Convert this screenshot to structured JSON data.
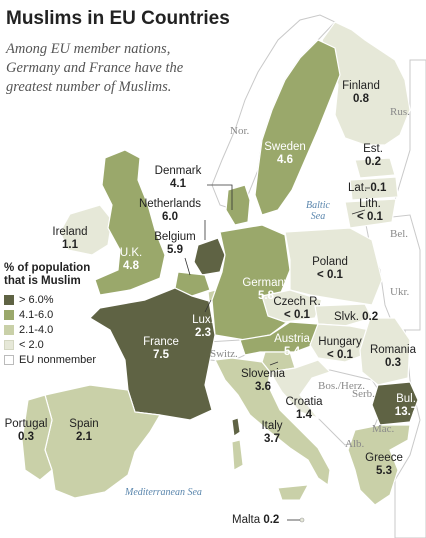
{
  "title": "Muslims in EU Countries",
  "subtitle": "Among EU member nations, Germany and France have the greatest number of Muslims.",
  "legend": {
    "title": "% of population that is Muslim",
    "items": [
      {
        "label": "> 6.0%",
        "color": "#5f6344"
      },
      {
        "label": "4.1-6.0",
        "color": "#9aa86b"
      },
      {
        "label": "2.1-4.0",
        "color": "#c9d0a8"
      },
      {
        "label": "< 2.0",
        "color": "#e6e8d8"
      },
      {
        "label": "EU nonmember",
        "color": "#ffffff"
      }
    ]
  },
  "countries": [
    {
      "name": "Finland",
      "value": "0.8"
    },
    {
      "name": "Sweden",
      "value": "4.6"
    },
    {
      "name": "Est.",
      "value": "0.2"
    },
    {
      "name": "Lat.",
      "value": "0.1"
    },
    {
      "name": "Lith.",
      "value": "< 0.1"
    },
    {
      "name": "Denmark",
      "value": "4.1"
    },
    {
      "name": "Netherlands",
      "value": "6.0"
    },
    {
      "name": "Belgium",
      "value": "5.9"
    },
    {
      "name": "Ireland",
      "value": "1.1"
    },
    {
      "name": "U.K.",
      "value": "4.8"
    },
    {
      "name": "Poland",
      "value": "< 0.1"
    },
    {
      "name": "Germany",
      "value": "5.8"
    },
    {
      "name": "Czech R.",
      "value": "< 0.1"
    },
    {
      "name": "Slvk.",
      "value": "0.2"
    },
    {
      "name": "Lux.",
      "value": "2.3"
    },
    {
      "name": "France",
      "value": "7.5"
    },
    {
      "name": "Austria",
      "value": "5.4"
    },
    {
      "name": "Hungary",
      "value": "< 0.1"
    },
    {
      "name": "Romania",
      "value": "0.3"
    },
    {
      "name": "Slovenia",
      "value": "3.6"
    },
    {
      "name": "Croatia",
      "value": "1.4"
    },
    {
      "name": "Bul.",
      "value": "13.7"
    },
    {
      "name": "Portugal",
      "value": "0.3"
    },
    {
      "name": "Spain",
      "value": "2.1"
    },
    {
      "name": "Italy",
      "value": "3.7"
    },
    {
      "name": "Greece",
      "value": "5.3"
    },
    {
      "name": "Malta",
      "value": "0.2"
    }
  ],
  "nonmember_labels": [
    "Nor.",
    "Rus.",
    "Bel.",
    "Ukr.",
    "Switz.",
    "Serb.",
    "Bos./Herz.",
    "Mac.",
    "Alb."
  ],
  "seas": [
    "Baltic Sea",
    "Mediterranean Sea"
  ]
}
